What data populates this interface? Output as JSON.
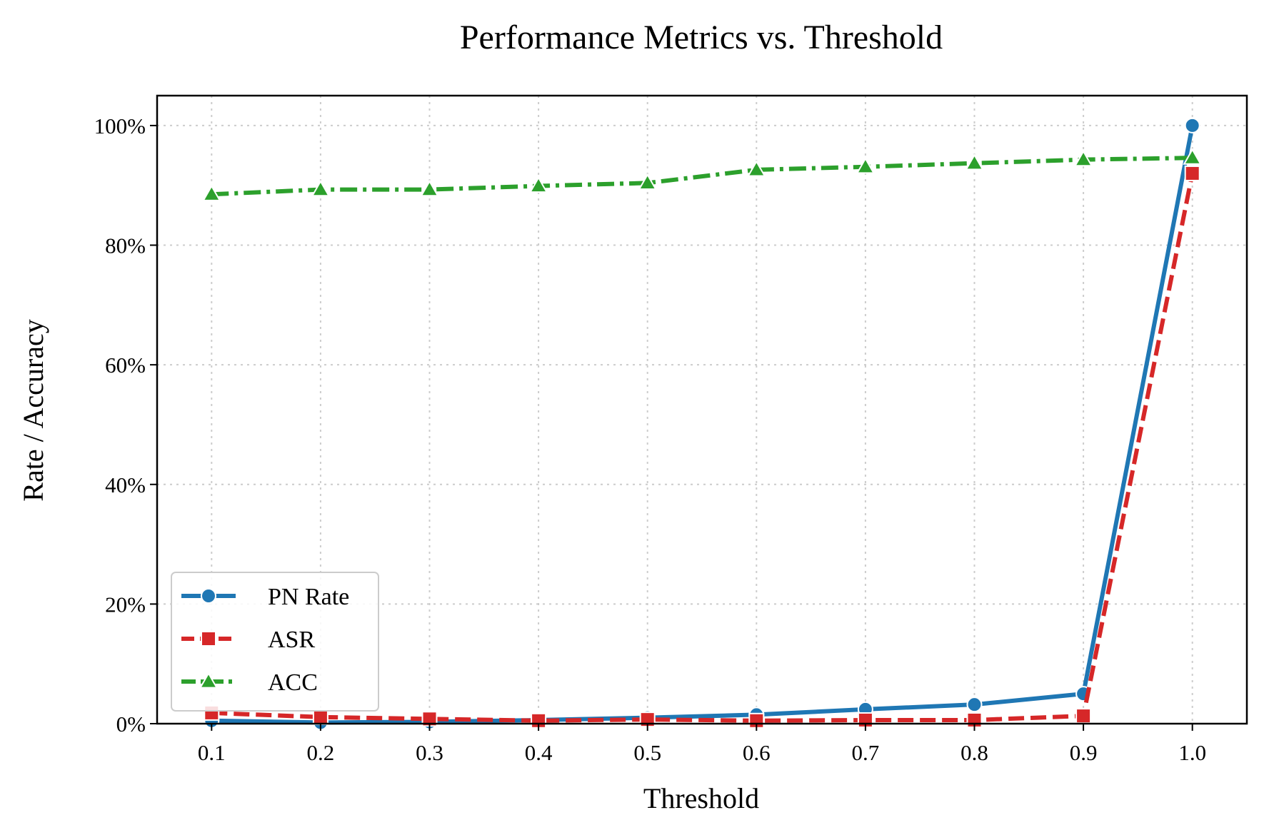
{
  "chart_data": {
    "type": "line",
    "title": "Performance Metrics vs. Threshold",
    "xlabel": "Threshold",
    "ylabel": "Rate / Accuracy",
    "x": [
      0.1,
      0.2,
      0.3,
      0.4,
      0.5,
      0.6,
      0.7,
      0.8,
      0.9,
      1.0
    ],
    "x_tick_labels": [
      "0.1",
      "0.2",
      "0.3",
      "0.4",
      "0.5",
      "0.6",
      "0.7",
      "0.8",
      "0.9",
      "1.0"
    ],
    "xlim": [
      0.05,
      1.05
    ],
    "ylim": [
      0,
      105
    ],
    "y_ticks": [
      0,
      20,
      40,
      60,
      80,
      100
    ],
    "y_tick_labels": [
      "0%",
      "20%",
      "40%",
      "60%",
      "80%",
      "100%"
    ],
    "grid": true,
    "legend_position": "lower-left",
    "series": [
      {
        "name": "PN Rate",
        "values": [
          0.5,
          0.2,
          0.3,
          0.6,
          1.0,
          1.5,
          2.4,
          3.2,
          5.0,
          100.0
        ],
        "color": "#1f77b4",
        "marker": "circle",
        "line_style": "solid"
      },
      {
        "name": "ASR",
        "values": [
          1.8,
          1.1,
          0.8,
          0.5,
          0.7,
          0.5,
          0.6,
          0.6,
          1.3,
          92.0
        ],
        "color": "#d62728",
        "marker": "square",
        "line_style": "dashed"
      },
      {
        "name": "ACC",
        "values": [
          88.5,
          89.3,
          89.3,
          89.9,
          90.4,
          92.6,
          93.1,
          93.7,
          94.3,
          94.6
        ],
        "color": "#2ca02c",
        "marker": "triangle",
        "line_style": "dashdot"
      }
    ]
  }
}
